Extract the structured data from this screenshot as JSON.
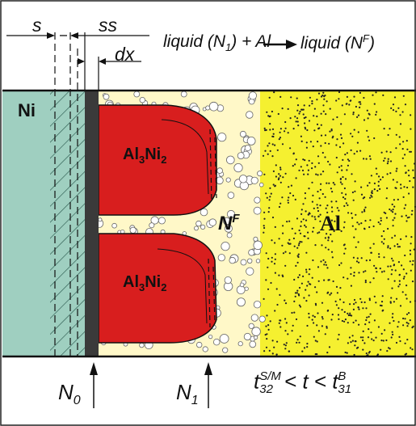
{
  "labels": {
    "s": "s",
    "ss": "ss",
    "dx": "dx",
    "reaction_a": "liquid (N",
    "reaction_a_sub": "1",
    "reaction_b": ") + Al",
    "reaction_c": "liquid (N",
    "reaction_c_sup": "F",
    "reaction_d": ")",
    "ni": "Ni",
    "phase_top_main": "Al",
    "phase_top_sub1": "3",
    "phase_top_mid": "Ni",
    "phase_top_sub2": "2",
    "phase_bot_main": "Al",
    "phase_bot_sub1": "3",
    "phase_bot_mid": "Ni",
    "phase_bot_sub2": "2",
    "nf_main": "N",
    "nf_sup": "F",
    "al": "Al",
    "n0_main": "N",
    "n0_sub": "0",
    "n1_main": "N",
    "n1_sub": "1",
    "t_a": "t",
    "t_a_sup": "S/M",
    "t_a_sub": "32",
    "t_mid": "< t <",
    "t_b": "t",
    "t_b_sup": "B",
    "t_b_sub": "31"
  },
  "colors": {
    "ni": "#9fcfc0",
    "interface": "#3a3a3a",
    "al3ni2": "#d81e1e",
    "liquid": "#fff8c8",
    "al": "#f5f030",
    "border": "#111111"
  }
}
